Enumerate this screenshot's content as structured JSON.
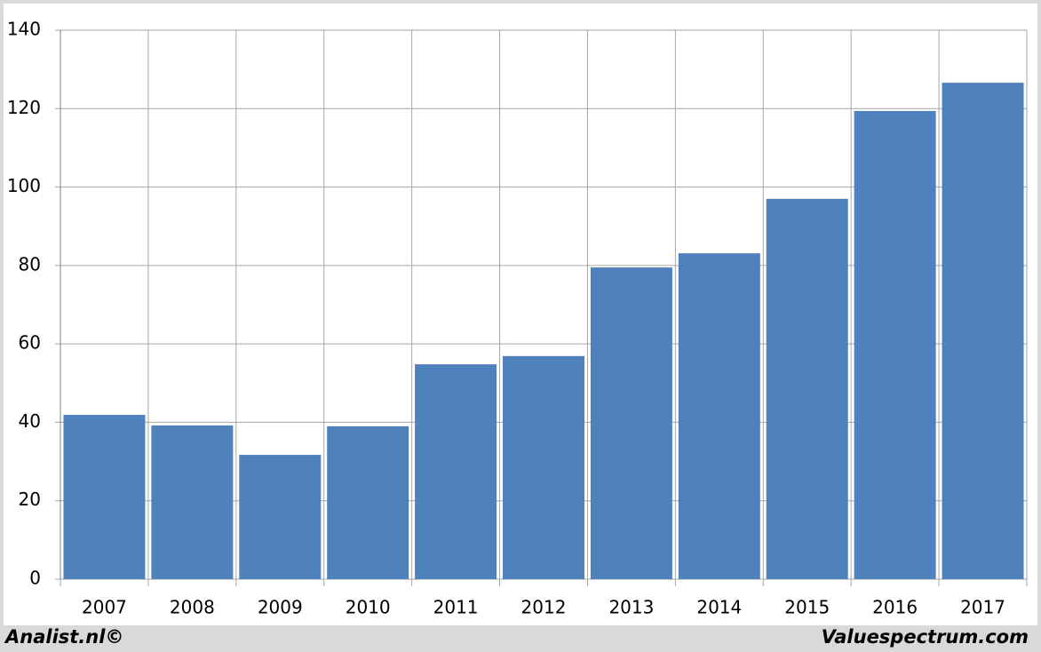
{
  "chart_data": {
    "type": "bar",
    "categories": [
      "2007",
      "2008",
      "2009",
      "2010",
      "2011",
      "2012",
      "2013",
      "2014",
      "2015",
      "2016",
      "2017"
    ],
    "values": [
      41.9,
      39.2,
      31.7,
      39,
      54.8,
      56.9,
      79.5,
      83.1,
      97,
      119.4,
      126.6
    ],
    "color": "#4f81bd",
    "ylim": [
      0,
      140
    ],
    "yticks": [
      0,
      20,
      40,
      60,
      80,
      100,
      120,
      140
    ],
    "grid": true,
    "credits": [
      "Analist.nl©",
      "Valuespectrum.com"
    ]
  }
}
